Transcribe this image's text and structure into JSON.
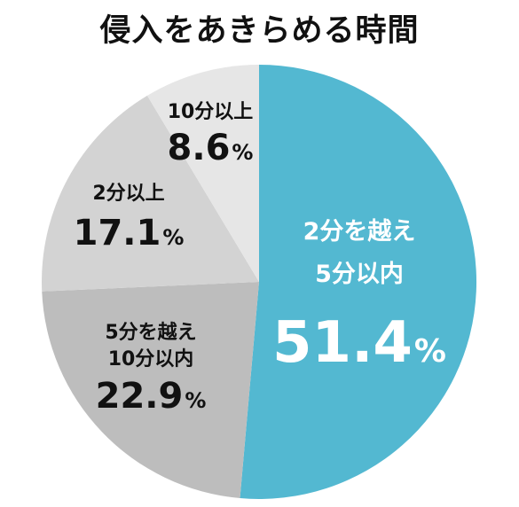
{
  "chart_data": {
    "type": "pie",
    "title": "侵入をあきらめる時間",
    "slices": [
      {
        "label_lines": [
          "2分を越え",
          "5分以内"
        ],
        "value": 51.4,
        "value_text": "51.4",
        "unit": "%",
        "color": "#53b8d1",
        "text_color": "#ffffff"
      },
      {
        "label_lines": [
          "5分を越え",
          "10分以内"
        ],
        "value": 22.9,
        "value_text": "22.9",
        "unit": "%",
        "color": "#bdbdbd",
        "text_color": "#111111"
      },
      {
        "label_lines": [
          "2分以上"
        ],
        "value": 17.1,
        "value_text": "17.1",
        "unit": "%",
        "color": "#d3d3d3",
        "text_color": "#111111"
      },
      {
        "label_lines": [
          "10分以上"
        ],
        "value": 8.6,
        "value_text": "8.6",
        "unit": "%",
        "color": "#e6e6e6",
        "text_color": "#111111"
      }
    ]
  }
}
